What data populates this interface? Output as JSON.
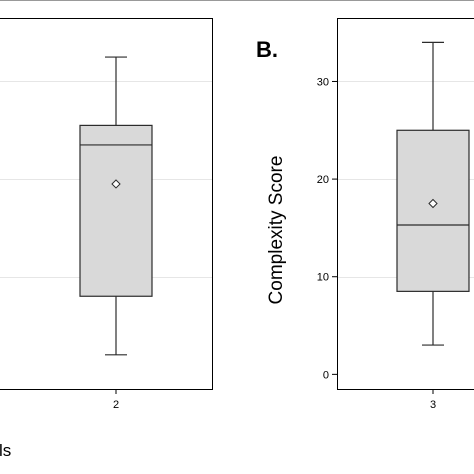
{
  "chart_data": [
    {
      "type": "box",
      "panel_label": "",
      "ylabel": "",
      "categories": [
        "2"
      ],
      "boxes": [
        {
          "category": "2",
          "min": 2.0,
          "q1": 8.0,
          "median": 23.5,
          "q3": 25.5,
          "max": 32.5,
          "mean": 19.5
        }
      ],
      "ylim": [
        -1.5,
        36.5
      ],
      "yticks": [],
      "grid": "horizontal",
      "grid_values": [
        10,
        20,
        30
      ],
      "cut_text": "ls"
    },
    {
      "type": "box",
      "panel_label": "B.",
      "ylabel": "Complexity Score",
      "categories": [
        "3"
      ],
      "boxes": [
        {
          "category": "3",
          "min": 3.0,
          "q1": 8.5,
          "median": 15.3,
          "q3": 25.0,
          "max": 34.0,
          "mean": 17.5
        }
      ],
      "ylim": [
        -1.5,
        36.5
      ],
      "yticks": [
        "0",
        "10",
        "20",
        "30"
      ],
      "grid": "horizontal",
      "grid_values": [
        10,
        20,
        30
      ]
    }
  ]
}
